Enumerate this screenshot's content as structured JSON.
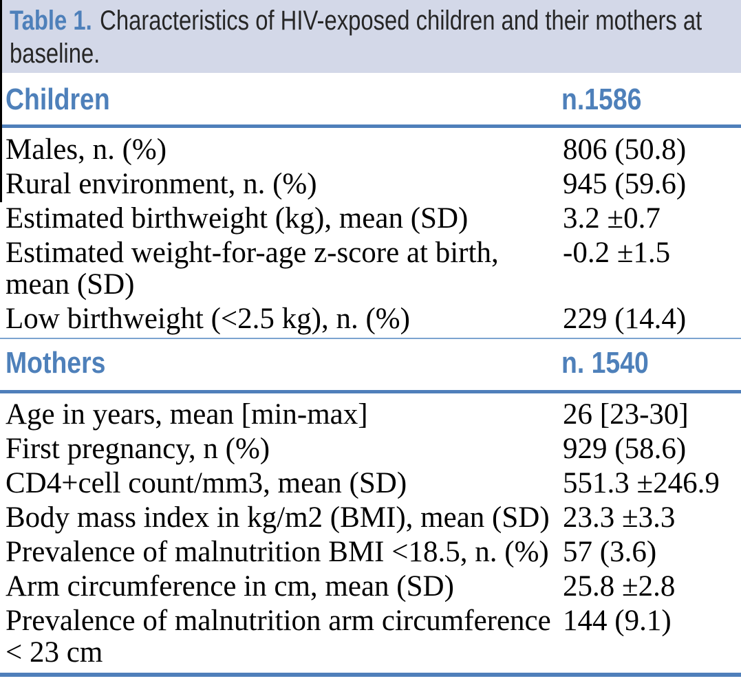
{
  "colors": {
    "accent_blue": "#4e80ba",
    "rule_blue": "#4f7fba",
    "thin_rule_blue": "#7ba3cf",
    "band_background": "#d3d8e8",
    "title_text": "#262626",
    "body_text": "#000000"
  },
  "caption": {
    "label": "Table 1.",
    "text": "Characteristics of HIV-exposed children and their mothers at baseline."
  },
  "sections": [
    {
      "name": "Children",
      "count": "n.1586",
      "rows": [
        {
          "label": "Males, n. (%)",
          "value": "806 (50.8)"
        },
        {
          "label": "Rural environment, n. (%)",
          "value": "945 (59.6)"
        },
        {
          "label": "Estimated birthweight (kg), mean (SD)",
          "value": "3.2 ±0.7"
        },
        {
          "label": "Estimated weight-for-age z-score at birth,\nmean (SD)",
          "value": "-0.2 ±1.5"
        },
        {
          "label": "Low birthweight (<2.5 kg), n. (%)",
          "value": "229 (14.4)"
        }
      ]
    },
    {
      "name": "Mothers",
      "count": "n. 1540",
      "rows": [
        {
          "label": "Age in years, mean [min-max]",
          "value": "26 [23-30]"
        },
        {
          "label": "First pregnancy, n (%)",
          "value": "929 (58.6)"
        },
        {
          "label": "CD4+cell count/mm3, mean (SD)",
          "value": "551.3 ±246.9"
        },
        {
          "label": "Body mass index in kg/m2 (BMI), mean (SD)",
          "value": "23.3 ±3.3"
        },
        {
          "label": "Prevalence of malnutrition BMI <18.5, n. (%)",
          "value": "57 (3.6)"
        },
        {
          "label": "Arm circumference in cm, mean (SD)",
          "value": "25.8 ±2.8"
        },
        {
          "label": "Prevalence of malnutrition arm circumference\n< 23 cm",
          "value": "144 (9.1)"
        }
      ]
    }
  ]
}
